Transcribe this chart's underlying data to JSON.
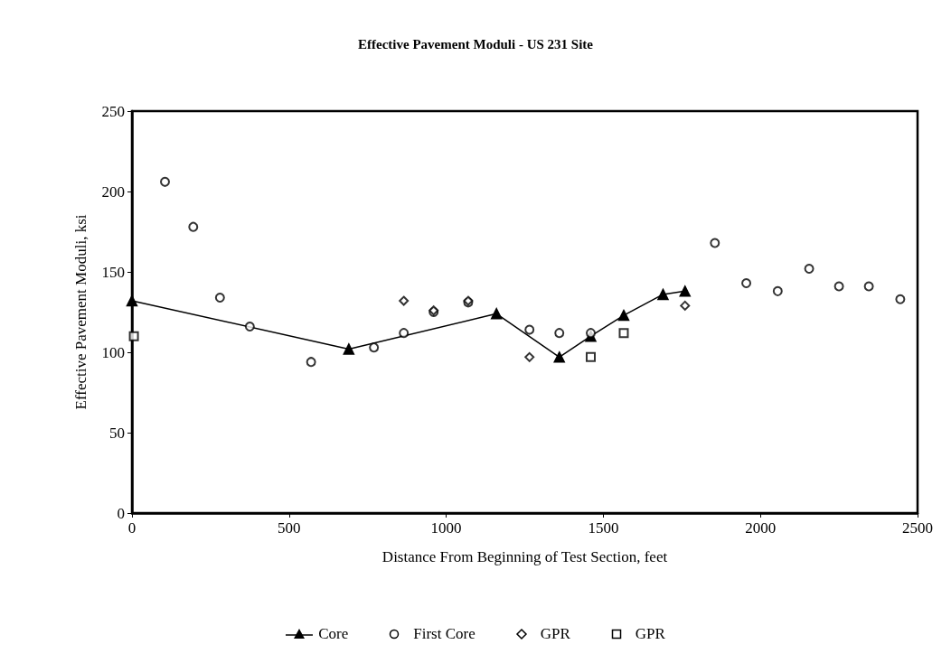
{
  "chart_data": {
    "type": "scatter",
    "title": "Effective Pavement Moduli - US 231 Site",
    "xlabel": "Distance From Beginning of Test Section, feet",
    "ylabel": "Effective Pavement Moduli, ksi",
    "xlim": [
      0,
      2500
    ],
    "xticks": [
      0,
      500,
      {
        "value": 1000,
        "label": "1000"
      },
      {
        "value": 1500,
        "label": "1500"
      },
      {
        "value": 2000,
        "label": "2000"
      },
      {
        "value": 2500,
        "label": "2500"
      }
    ],
    "ylim": [
      0,
      250
    ],
    "yticks": [
      0,
      50,
      100,
      150,
      200,
      250
    ],
    "grid": false,
    "legend": "bottom",
    "series": [
      {
        "name": "Core",
        "type": "line",
        "marker": "triangle",
        "line_style": "solid",
        "color": "#000000",
        "x": [
          0,
          690,
          1160,
          1360,
          1460,
          1565,
          1690,
          1760
        ],
        "values": [
          132,
          102,
          124,
          97,
          110,
          123,
          136,
          138
        ]
      },
      {
        "name": "First Core",
        "marker": "circle",
        "color": "#000000",
        "x": [
          105,
          195,
          280,
          375,
          570,
          770,
          865,
          960,
          1070,
          1265,
          1360,
          1460,
          1855,
          1955,
          2055,
          2155,
          2250,
          2345,
          2445
        ],
        "values": [
          206,
          178,
          134,
          116,
          94,
          103,
          112,
          125,
          131,
          114,
          112,
          112,
          168,
          143,
          138,
          152,
          141,
          141,
          133
        ]
      },
      {
        "name": "GPR",
        "marker": "diamond",
        "color": "#000000",
        "x": [
          865,
          960,
          1070,
          1265,
          1760
        ],
        "values": [
          132,
          126,
          132,
          97,
          129
        ]
      },
      {
        "name": "GPR",
        "marker": "square",
        "color": "#000000",
        "x": [
          6,
          1460,
          1565
        ],
        "values": [
          110,
          97,
          112
        ]
      }
    ]
  }
}
